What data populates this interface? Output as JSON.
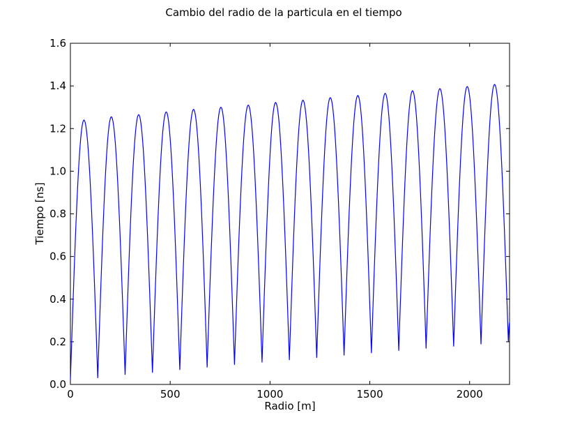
{
  "chart_data": {
    "type": "line",
    "title": "Cambio del radio de la particula en el tiempo",
    "xlabel": "Radio [m]",
    "ylabel": "Tiempo [ns]",
    "xlim": [
      0,
      2200
    ],
    "ylim": [
      0.0,
      1.6
    ],
    "xticks": [
      0,
      500,
      1000,
      1500,
      2000
    ],
    "xtick_labels": [
      "0",
      "500",
      "1000",
      "1500",
      "2000"
    ],
    "yticks": [
      0.0,
      0.2,
      0.4,
      0.6,
      0.8,
      1.0,
      1.2,
      1.4,
      1.6
    ],
    "ytick_labels": [
      "0.0",
      "0.2",
      "0.4",
      "0.6",
      "0.8",
      "1.0",
      "1.2",
      "1.4",
      "1.6"
    ],
    "grid": false,
    "series_color": "#0000ff",
    "series": [
      {
        "x": [
          0,
          68,
          137,
          205,
          274,
          342,
          411,
          480,
          548,
          617,
          685,
          754,
          822,
          891,
          960,
          1028,
          1097,
          1165,
          1234,
          1302,
          1371,
          1440,
          1508,
          1577,
          1645,
          1714,
          1782,
          1851,
          1920,
          1988,
          2057,
          2125,
          2194,
          2200
        ],
        "y": [
          0.02,
          1.24,
          0.03,
          1.255,
          0.045,
          1.265,
          0.055,
          1.278,
          0.068,
          1.29,
          0.08,
          1.3,
          0.092,
          1.31,
          0.103,
          1.322,
          0.114,
          1.333,
          0.125,
          1.345,
          0.136,
          1.355,
          0.147,
          1.365,
          0.158,
          1.377,
          0.168,
          1.387,
          0.178,
          1.397,
          0.188,
          1.407,
          0.2,
          0.29
        ]
      }
    ]
  }
}
